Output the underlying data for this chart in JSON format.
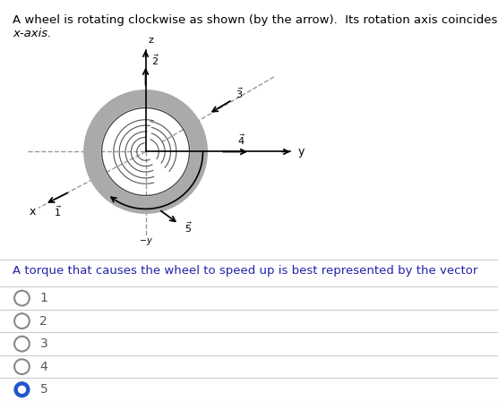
{
  "title_line1": "A wheel is rotating clockwise as shown (by the arrow).  Its rotation axis coincides with the",
  "title_line2": "x-axis.",
  "question": "A torque that causes the wheel to speed up is best represented by the vector",
  "choices": [
    "1",
    "2",
    "3",
    "4",
    "5"
  ],
  "selected": 4,
  "bg_color": "#ffffff",
  "text_color": "#000000",
  "question_color": "#2222aa",
  "wheel_ring_color": "#aaaaaa",
  "wheel_line_color": "#555555",
  "axis_solid_color": "#000000",
  "axis_dash_color": "#999999",
  "radio_empty_color": "#888888",
  "radio_fill_color": "#2255cc",
  "choice_text_color": "#555555",
  "separator_color": "#cccccc"
}
